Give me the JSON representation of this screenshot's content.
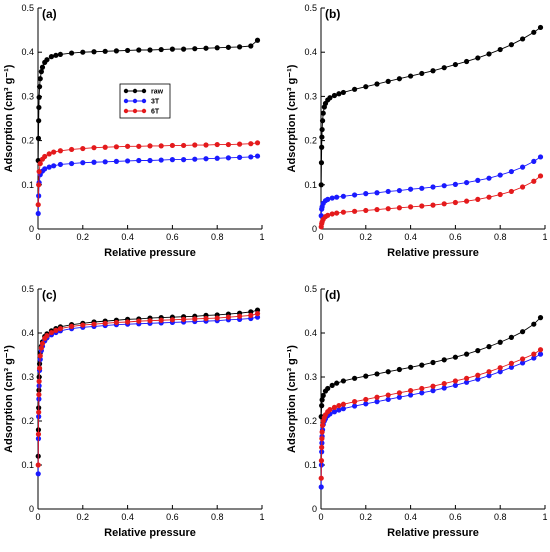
{
  "chart_data": [
    {
      "type": "scatter",
      "panel_label": "(a)",
      "xlabel": "Relative pressure",
      "ylabel": "Adsorption (cm³ g⁻¹)",
      "xlim": [
        0,
        1
      ],
      "ylim": [
        0,
        0.5
      ],
      "xticks": [
        0,
        0.2,
        0.4,
        0.6,
        0.8,
        1
      ],
      "xtick_labels": [
        "0",
        "0.2",
        "0.4",
        "0.6",
        "0.8",
        "1"
      ],
      "yticks": [
        0,
        0.1,
        0.2,
        0.3,
        0.4,
        0.5
      ],
      "ytick_labels": [
        "0",
        "0.1",
        "0.2",
        "0.3",
        "0.4",
        "0.5"
      ],
      "legend": {
        "placement": "top-left-center",
        "entries": [
          "raw",
          "3T",
          "6T"
        ]
      },
      "series": [
        {
          "name": "raw",
          "color": "#000000",
          "x": [
            0.001,
            0.002,
            0.003,
            0.004,
            0.005,
            0.007,
            0.01,
            0.015,
            0.02,
            0.03,
            0.04,
            0.06,
            0.08,
            0.1,
            0.15,
            0.2,
            0.25,
            0.3,
            0.35,
            0.4,
            0.45,
            0.5,
            0.55,
            0.6,
            0.65,
            0.7,
            0.75,
            0.8,
            0.85,
            0.9,
            0.95,
            0.98
          ],
          "y": [
            0.155,
            0.205,
            0.245,
            0.275,
            0.298,
            0.322,
            0.34,
            0.356,
            0.366,
            0.377,
            0.383,
            0.39,
            0.393,
            0.395,
            0.398,
            0.4,
            0.401,
            0.402,
            0.403,
            0.404,
            0.405,
            0.405,
            0.406,
            0.407,
            0.407,
            0.408,
            0.409,
            0.41,
            0.411,
            0.412,
            0.414,
            0.427
          ]
        },
        {
          "name": "3T",
          "color": "#1a1aff",
          "x": [
            0.001,
            0.003,
            0.005,
            0.01,
            0.02,
            0.03,
            0.05,
            0.07,
            0.1,
            0.15,
            0.2,
            0.25,
            0.3,
            0.35,
            0.4,
            0.45,
            0.5,
            0.55,
            0.6,
            0.65,
            0.7,
            0.75,
            0.8,
            0.85,
            0.9,
            0.95,
            0.98
          ],
          "y": [
            0.035,
            0.075,
            0.105,
            0.123,
            0.131,
            0.136,
            0.14,
            0.143,
            0.146,
            0.148,
            0.15,
            0.151,
            0.152,
            0.153,
            0.154,
            0.155,
            0.155,
            0.156,
            0.157,
            0.157,
            0.158,
            0.159,
            0.16,
            0.161,
            0.162,
            0.163,
            0.165
          ]
        },
        {
          "name": "6T",
          "color": "#e41a1c",
          "x": [
            0.001,
            0.003,
            0.005,
            0.01,
            0.02,
            0.03,
            0.05,
            0.07,
            0.1,
            0.15,
            0.2,
            0.25,
            0.3,
            0.35,
            0.4,
            0.45,
            0.5,
            0.55,
            0.6,
            0.65,
            0.7,
            0.75,
            0.8,
            0.85,
            0.9,
            0.95,
            0.98
          ],
          "y": [
            0.055,
            0.1,
            0.13,
            0.148,
            0.158,
            0.164,
            0.17,
            0.174,
            0.177,
            0.18,
            0.182,
            0.184,
            0.185,
            0.186,
            0.187,
            0.187,
            0.188,
            0.188,
            0.189,
            0.189,
            0.19,
            0.19,
            0.191,
            0.191,
            0.192,
            0.193,
            0.195
          ]
        }
      ]
    },
    {
      "type": "scatter",
      "panel_label": "(b)",
      "xlabel": "Relative pressure",
      "ylabel": "Adsorption (cm³ g⁻¹)",
      "xlim": [
        0,
        1
      ],
      "ylim": [
        0,
        0.5
      ],
      "xticks": [
        0,
        0.2,
        0.4,
        0.6,
        0.8,
        1
      ],
      "xtick_labels": [
        "0",
        "0.2",
        "0.4",
        "0.6",
        "0.8",
        "1"
      ],
      "yticks": [
        0,
        0.1,
        0.2,
        0.3,
        0.4,
        0.5
      ],
      "ytick_labels": [
        "0",
        "0.1",
        "0.2",
        "0.3",
        "0.4",
        "0.5"
      ],
      "series": [
        {
          "name": "raw",
          "color": "#000000",
          "x": [
            0.001,
            0.002,
            0.003,
            0.004,
            0.005,
            0.007,
            0.01,
            0.015,
            0.02,
            0.03,
            0.04,
            0.06,
            0.08,
            0.1,
            0.15,
            0.2,
            0.25,
            0.3,
            0.35,
            0.4,
            0.45,
            0.5,
            0.55,
            0.6,
            0.65,
            0.7,
            0.75,
            0.8,
            0.85,
            0.9,
            0.95,
            0.98
          ],
          "y": [
            0.1,
            0.15,
            0.185,
            0.208,
            0.225,
            0.245,
            0.262,
            0.276,
            0.284,
            0.292,
            0.297,
            0.302,
            0.306,
            0.309,
            0.316,
            0.322,
            0.328,
            0.334,
            0.34,
            0.346,
            0.352,
            0.358,
            0.365,
            0.372,
            0.379,
            0.387,
            0.396,
            0.406,
            0.417,
            0.43,
            0.445,
            0.456
          ]
        },
        {
          "name": "3T",
          "color": "#1a1aff",
          "x": [
            0.001,
            0.003,
            0.005,
            0.01,
            0.02,
            0.03,
            0.05,
            0.07,
            0.1,
            0.15,
            0.2,
            0.25,
            0.3,
            0.35,
            0.4,
            0.45,
            0.5,
            0.55,
            0.6,
            0.65,
            0.7,
            0.75,
            0.8,
            0.85,
            0.9,
            0.95,
            0.98
          ],
          "y": [
            0.03,
            0.045,
            0.05,
            0.058,
            0.064,
            0.067,
            0.07,
            0.072,
            0.074,
            0.077,
            0.08,
            0.082,
            0.085,
            0.087,
            0.09,
            0.092,
            0.095,
            0.098,
            0.101,
            0.105,
            0.11,
            0.115,
            0.122,
            0.13,
            0.14,
            0.153,
            0.163
          ]
        },
        {
          "name": "6T",
          "color": "#e41a1c",
          "x": [
            0.001,
            0.003,
            0.005,
            0.01,
            0.02,
            0.03,
            0.05,
            0.07,
            0.1,
            0.15,
            0.2,
            0.25,
            0.3,
            0.35,
            0.4,
            0.45,
            0.5,
            0.55,
            0.6,
            0.65,
            0.7,
            0.75,
            0.8,
            0.85,
            0.9,
            0.95,
            0.98
          ],
          "y": [
            0.005,
            0.012,
            0.016,
            0.022,
            0.028,
            0.031,
            0.034,
            0.036,
            0.038,
            0.04,
            0.042,
            0.044,
            0.046,
            0.048,
            0.05,
            0.052,
            0.054,
            0.057,
            0.06,
            0.063,
            0.067,
            0.072,
            0.078,
            0.085,
            0.095,
            0.108,
            0.12
          ]
        }
      ]
    },
    {
      "type": "scatter",
      "panel_label": "(c)",
      "xlabel": "Relative pressure",
      "ylabel": "Adsorption (cm³ g⁻¹)",
      "xlim": [
        0,
        1
      ],
      "ylim": [
        0,
        0.5
      ],
      "xticks": [
        0,
        0.2,
        0.4,
        0.6,
        0.8,
        1
      ],
      "xtick_labels": [
        "0",
        "0.2",
        "0.4",
        "0.6",
        "0.8",
        "1"
      ],
      "yticks": [
        0,
        0.1,
        0.2,
        0.3,
        0.4,
        0.5
      ],
      "ytick_labels": [
        "0",
        "0.1",
        "0.2",
        "0.3",
        "0.4",
        "0.5"
      ],
      "series": [
        {
          "name": "raw",
          "color": "#000000",
          "x": [
            0.001,
            0.002,
            0.003,
            0.004,
            0.005,
            0.007,
            0.01,
            0.015,
            0.02,
            0.03,
            0.04,
            0.06,
            0.08,
            0.1,
            0.15,
            0.2,
            0.25,
            0.3,
            0.35,
            0.4,
            0.45,
            0.5,
            0.55,
            0.6,
            0.65,
            0.7,
            0.75,
            0.8,
            0.85,
            0.9,
            0.95,
            0.98
          ],
          "y": [
            0.12,
            0.18,
            0.23,
            0.27,
            0.3,
            0.33,
            0.355,
            0.37,
            0.38,
            0.392,
            0.398,
            0.405,
            0.41,
            0.414,
            0.419,
            0.422,
            0.425,
            0.427,
            0.429,
            0.431,
            0.432,
            0.434,
            0.435,
            0.436,
            0.437,
            0.438,
            0.44,
            0.441,
            0.443,
            0.445,
            0.448,
            0.452
          ]
        },
        {
          "name": "3T",
          "color": "#1a1aff",
          "x": [
            0.001,
            0.002,
            0.003,
            0.004,
            0.005,
            0.007,
            0.01,
            0.015,
            0.02,
            0.03,
            0.04,
            0.06,
            0.08,
            0.1,
            0.15,
            0.2,
            0.25,
            0.3,
            0.35,
            0.4,
            0.45,
            0.5,
            0.55,
            0.6,
            0.65,
            0.7,
            0.75,
            0.8,
            0.85,
            0.9,
            0.95,
            0.98
          ],
          "y": [
            0.08,
            0.16,
            0.21,
            0.25,
            0.28,
            0.315,
            0.34,
            0.36,
            0.37,
            0.382,
            0.389,
            0.396,
            0.401,
            0.405,
            0.41,
            0.413,
            0.415,
            0.417,
            0.419,
            0.42,
            0.421,
            0.422,
            0.423,
            0.424,
            0.425,
            0.426,
            0.427,
            0.428,
            0.43,
            0.431,
            0.433,
            0.436
          ]
        },
        {
          "name": "6T",
          "color": "#e41a1c",
          "x": [
            0.001,
            0.002,
            0.003,
            0.004,
            0.005,
            0.007,
            0.01,
            0.015,
            0.02,
            0.03,
            0.04,
            0.06,
            0.08,
            0.1,
            0.15,
            0.2,
            0.25,
            0.3,
            0.35,
            0.4,
            0.45,
            0.5,
            0.55,
            0.6,
            0.65,
            0.7,
            0.75,
            0.8,
            0.85,
            0.9,
            0.95,
            0.98
          ],
          "y": [
            0.1,
            0.17,
            0.22,
            0.26,
            0.29,
            0.32,
            0.348,
            0.366,
            0.376,
            0.388,
            0.394,
            0.401,
            0.406,
            0.41,
            0.415,
            0.418,
            0.42,
            0.422,
            0.424,
            0.425,
            0.427,
            0.428,
            0.429,
            0.43,
            0.431,
            0.432,
            0.433,
            0.434,
            0.436,
            0.438,
            0.44,
            0.444
          ]
        }
      ]
    },
    {
      "type": "scatter",
      "panel_label": "(d)",
      "xlabel": "Relative pressure",
      "ylabel": "Adsorption (cm³ g⁻¹)",
      "xlim": [
        0,
        1
      ],
      "ylim": [
        0,
        0.5
      ],
      "xticks": [
        0,
        0.2,
        0.4,
        0.6,
        0.8,
        1
      ],
      "xtick_labels": [
        "0",
        "0.2",
        "0.4",
        "0.6",
        "0.8",
        "1"
      ],
      "yticks": [
        0,
        0.1,
        0.2,
        0.3,
        0.4,
        0.5
      ],
      "ytick_labels": [
        "0",
        "0.1",
        "0.2",
        "0.3",
        "0.4",
        "0.5"
      ],
      "series": [
        {
          "name": "raw",
          "color": "#000000",
          "x": [
            0.001,
            0.003,
            0.005,
            0.01,
            0.02,
            0.03,
            0.05,
            0.07,
            0.1,
            0.15,
            0.2,
            0.25,
            0.3,
            0.35,
            0.4,
            0.45,
            0.5,
            0.55,
            0.6,
            0.65,
            0.7,
            0.75,
            0.8,
            0.85,
            0.9,
            0.95,
            0.98
          ],
          "y": [
            0.21,
            0.235,
            0.248,
            0.258,
            0.268,
            0.274,
            0.281,
            0.286,
            0.291,
            0.297,
            0.302,
            0.307,
            0.312,
            0.317,
            0.322,
            0.327,
            0.333,
            0.339,
            0.345,
            0.352,
            0.36,
            0.369,
            0.379,
            0.39,
            0.403,
            0.42,
            0.435
          ]
        },
        {
          "name": "3T",
          "color": "#1a1aff",
          "x": [
            0.001,
            0.002,
            0.003,
            0.004,
            0.005,
            0.007,
            0.01,
            0.015,
            0.02,
            0.03,
            0.04,
            0.06,
            0.08,
            0.1,
            0.15,
            0.2,
            0.25,
            0.3,
            0.35,
            0.4,
            0.45,
            0.5,
            0.55,
            0.6,
            0.65,
            0.7,
            0.75,
            0.8,
            0.85,
            0.9,
            0.95,
            0.98
          ],
          "y": [
            0.05,
            0.1,
            0.13,
            0.15,
            0.165,
            0.18,
            0.192,
            0.2,
            0.205,
            0.212,
            0.216,
            0.221,
            0.225,
            0.228,
            0.234,
            0.239,
            0.244,
            0.249,
            0.254,
            0.259,
            0.264,
            0.269,
            0.275,
            0.281,
            0.288,
            0.295,
            0.303,
            0.312,
            0.322,
            0.332,
            0.343,
            0.352
          ]
        },
        {
          "name": "6T",
          "color": "#e41a1c",
          "x": [
            0.001,
            0.002,
            0.003,
            0.004,
            0.005,
            0.007,
            0.01,
            0.015,
            0.02,
            0.03,
            0.04,
            0.06,
            0.08,
            0.1,
            0.15,
            0.2,
            0.25,
            0.3,
            0.35,
            0.4,
            0.45,
            0.5,
            0.55,
            0.6,
            0.65,
            0.7,
            0.75,
            0.8,
            0.85,
            0.9,
            0.95,
            0.98
          ],
          "y": [
            0.07,
            0.11,
            0.14,
            0.16,
            0.175,
            0.19,
            0.2,
            0.208,
            0.214,
            0.221,
            0.226,
            0.231,
            0.235,
            0.238,
            0.244,
            0.249,
            0.254,
            0.259,
            0.264,
            0.269,
            0.274,
            0.279,
            0.285,
            0.291,
            0.297,
            0.304,
            0.312,
            0.321,
            0.331,
            0.341,
            0.352,
            0.362
          ]
        }
      ]
    }
  ]
}
